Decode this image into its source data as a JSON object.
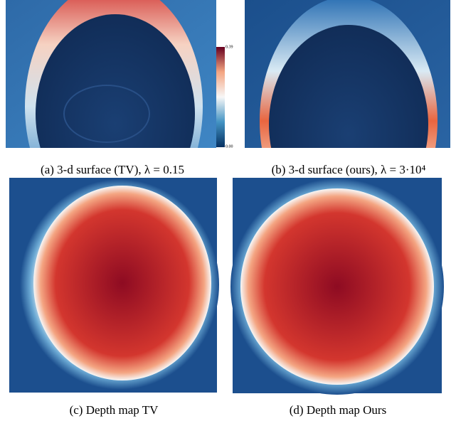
{
  "panels": [
    {
      "label": "(a)",
      "caption": "3-d surface (TV), λ = 0.15"
    },
    {
      "label": "(b)",
      "caption": "3-d surface (ours), λ = 3·10⁴"
    },
    {
      "label": "(c)",
      "caption": "Depth map TV"
    },
    {
      "label": "(d)",
      "caption": "Depth map Ours"
    }
  ],
  "colorbar": {
    "max": "0.39",
    "min": "0.00"
  }
}
